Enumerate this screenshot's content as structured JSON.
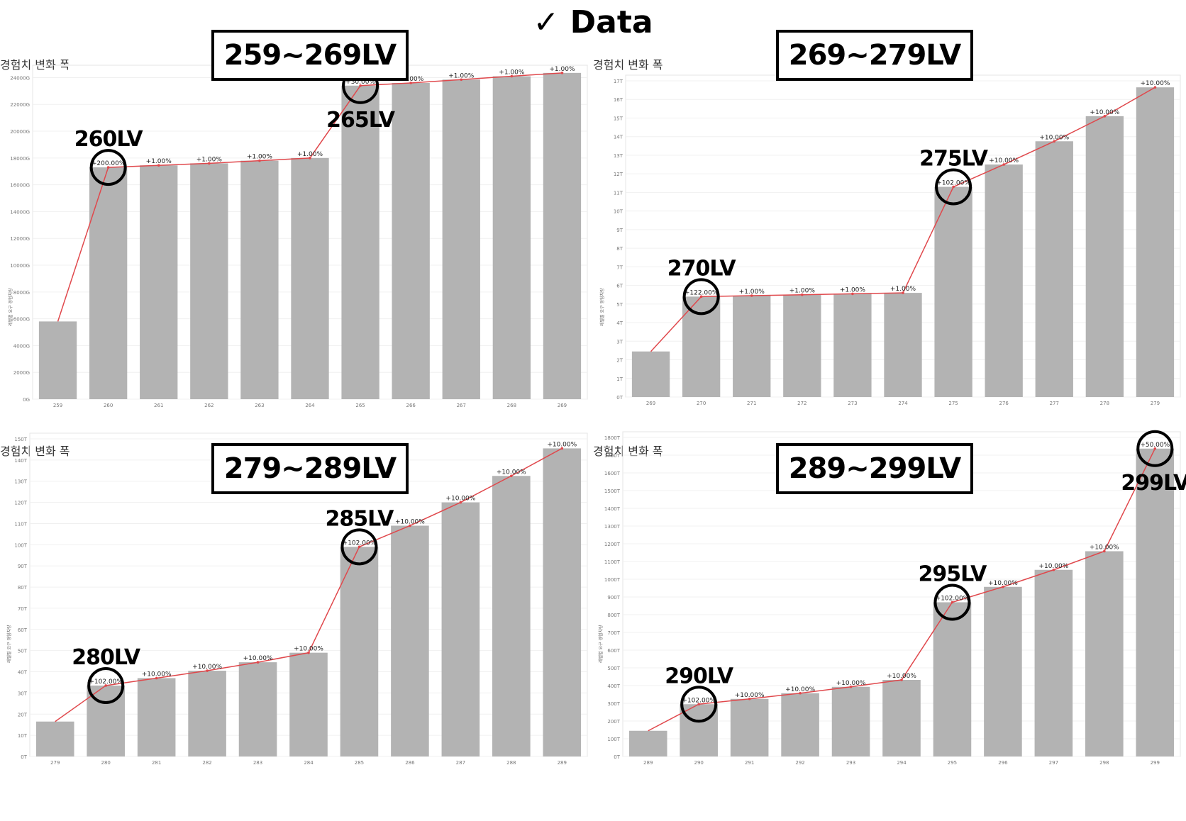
{
  "header": {
    "title": "✓ Data"
  },
  "chart_data": [
    {
      "type": "bar",
      "title": "경험치 변화 폭",
      "range_label": "259~269LV",
      "ylabel": "레벨별 요구 경험치량",
      "categories": [
        "259",
        "260",
        "261",
        "262",
        "263",
        "264",
        "265",
        "266",
        "267",
        "268",
        "269"
      ],
      "values": [
        5800,
        17300,
        17450,
        17600,
        17800,
        18000,
        23400,
        23600,
        23850,
        24100,
        24350
      ],
      "ylim": [
        0,
        24500
      ],
      "yticks": [
        "0G",
        "2000G",
        "4000G",
        "6000G",
        "8000G",
        "10000G",
        "12000G",
        "14000G",
        "16000G",
        "18000G",
        "20000G",
        "22000G",
        "24000G"
      ],
      "ytick_values": [
        0,
        2000,
        4000,
        6000,
        8000,
        10000,
        12000,
        14000,
        16000,
        18000,
        20000,
        22000,
        24000
      ],
      "line_labels": [
        "",
        "+200.00%",
        "+1.00%",
        "+1.00%",
        "+1.00%",
        "+1.00%",
        "+30.00%",
        "+1.00%",
        "+1.00%",
        "+1.00%",
        "+1.00%"
      ],
      "annotations": [
        {
          "index": 1,
          "text": "260LV",
          "position": "above"
        },
        {
          "index": 6,
          "text": "265LV",
          "position": "below"
        }
      ],
      "bar_color": "#b3b3b3",
      "line_color": "#e0484c"
    },
    {
      "type": "bar",
      "title": "경험치 변화 폭",
      "range_label": "269~279LV",
      "ylabel": "레벨별 요구 경험치량",
      "categories": [
        "269",
        "270",
        "271",
        "272",
        "273",
        "274",
        "275",
        "276",
        "277",
        "278",
        "279"
      ],
      "values": [
        2.45,
        5.4,
        5.45,
        5.5,
        5.55,
        5.6,
        11.3,
        12.5,
        13.75,
        15.1,
        16.65
      ],
      "ylim": [
        0,
        17
      ],
      "yticks": [
        "0T",
        "1T",
        "2T",
        "3T",
        "4T",
        "5T",
        "6T",
        "7T",
        "8T",
        "9T",
        "10T",
        "11T",
        "12T",
        "13T",
        "14T",
        "15T",
        "16T",
        "17T"
      ],
      "ytick_values": [
        0,
        1,
        2,
        3,
        4,
        5,
        6,
        7,
        8,
        9,
        10,
        11,
        12,
        13,
        14,
        15,
        16,
        17
      ],
      "line_labels": [
        "",
        "+122.00%",
        "+1.00%",
        "+1.00%",
        "+1.00%",
        "+1.00%",
        "+102.00%",
        "+10.00%",
        "+10.00%",
        "+10.00%",
        "+10.00%"
      ],
      "annotations": [
        {
          "index": 1,
          "text": "270LV",
          "position": "above"
        },
        {
          "index": 6,
          "text": "275LV",
          "position": "above"
        }
      ],
      "bar_color": "#b3b3b3",
      "line_color": "#e0484c"
    },
    {
      "type": "bar",
      "title": "경험치 변화 폭",
      "range_label": "279~289LV",
      "ylabel": "레벨별 요구 경험치량",
      "categories": [
        "279",
        "280",
        "281",
        "282",
        "283",
        "284",
        "285",
        "286",
        "287",
        "288",
        "289"
      ],
      "values": [
        16.5,
        33.5,
        37,
        40.5,
        44.5,
        49,
        99,
        109,
        120,
        132.5,
        145.5
      ],
      "ylim": [
        0,
        150
      ],
      "yticks": [
        "0T",
        "10T",
        "20T",
        "30T",
        "40T",
        "50T",
        "60T",
        "70T",
        "80T",
        "90T",
        "100T",
        "110T",
        "120T",
        "130T",
        "140T",
        "150T"
      ],
      "ytick_values": [
        0,
        10,
        20,
        30,
        40,
        50,
        60,
        70,
        80,
        90,
        100,
        110,
        120,
        130,
        140,
        150
      ],
      "line_labels": [
        "",
        "+102.00%",
        "+10.00%",
        "+10.00%",
        "+10.00%",
        "+10.00%",
        "+102.00%",
        "+10.00%",
        "+10.00%",
        "+10.00%",
        "+10.00%"
      ],
      "annotations": [
        {
          "index": 1,
          "text": "280LV",
          "position": "above"
        },
        {
          "index": 6,
          "text": "285LV",
          "position": "above"
        }
      ],
      "bar_color": "#b3b3b3",
      "line_color": "#e0484c"
    },
    {
      "type": "bar",
      "title": "경험치 변화 폭",
      "range_label": "289~299LV",
      "ylabel": "레벨별 요구 경험치량",
      "categories": [
        "289",
        "290",
        "291",
        "292",
        "293",
        "294",
        "295",
        "296",
        "297",
        "298",
        "299"
      ],
      "values": [
        145,
        295,
        325,
        357,
        393,
        432,
        870,
        957,
        1053,
        1158,
        1737
      ],
      "ylim": [
        0,
        1800
      ],
      "yticks": [
        "0T",
        "100T",
        "200T",
        "300T",
        "400T",
        "500T",
        "600T",
        "700T",
        "800T",
        "900T",
        "1000T",
        "1100T",
        "1200T",
        "1300T",
        "1400T",
        "1500T",
        "1600T",
        "1700T",
        "1800T"
      ],
      "ytick_values": [
        0,
        100,
        200,
        300,
        400,
        500,
        600,
        700,
        800,
        900,
        1000,
        1100,
        1200,
        1300,
        1400,
        1500,
        1600,
        1700,
        1800
      ],
      "line_labels": [
        "",
        "+102.00%",
        "+10.00%",
        "+10.00%",
        "+10.00%",
        "+10.00%",
        "+102.00%",
        "+10.00%",
        "+10.00%",
        "+10.00%",
        "+50.00%"
      ],
      "annotations": [
        {
          "index": 1,
          "text": "290LV",
          "position": "above"
        },
        {
          "index": 6,
          "text": "295LV",
          "position": "above"
        },
        {
          "index": 10,
          "text": "299LV",
          "position": "below"
        }
      ],
      "bar_color": "#b3b3b3",
      "line_color": "#e0484c"
    }
  ]
}
